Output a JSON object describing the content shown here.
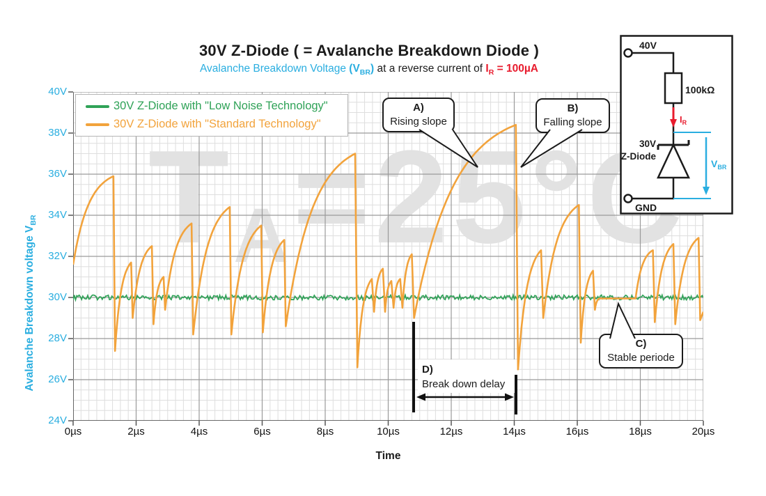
{
  "header": {
    "title": "30V Z-Diode ( = Avalanche Breakdown Diode )",
    "subtitle": {
      "highlight": "Avalanche Breakdown Voltage ",
      "vbr_open": "(V",
      "vbr_sub": "BR",
      "vbr_close": ")",
      "middle": " at a reverse current of  ",
      "current_i": "I",
      "current_sub": "R",
      "current_value": " = 100µA"
    }
  },
  "legend": {
    "items": [
      {
        "label": "30V Z-Diode with \"Low Noise Technology\"",
        "color": "#2fa257"
      },
      {
        "label": "30V Z-Diode with \"Standard Technology\"",
        "color": "#f2a33c"
      }
    ]
  },
  "axes": {
    "y_title_text": "Avalanche Breakdown voltage  ",
    "y_title_v": "V",
    "y_title_sub": "BR",
    "x_title": "Time",
    "y_ticks": [
      "40V",
      "38V",
      "36V",
      "34V",
      "32V",
      "30V",
      "28V",
      "26V",
      "24V"
    ],
    "x_ticks": [
      "0µs",
      "2µs",
      "4µs",
      "6µs",
      "8µs",
      "10µs",
      "12µs",
      "14µs",
      "16µs",
      "18µs",
      "20µs"
    ]
  },
  "annotations": {
    "a_tag": "A)",
    "a_text": "Rising slope",
    "b_tag": "B)",
    "b_text": "Falling slope",
    "c_tag": "C)",
    "c_text": "Stable periode",
    "d_tag": "D)",
    "d_text": "Break down delay"
  },
  "watermark": {
    "t": "T",
    "sub": "A",
    "rest": "=25°C"
  },
  "inset_circuit": {
    "supply": "40V",
    "resistor": "100kΩ",
    "current_i": "I",
    "current_sub": "R",
    "diode_line1": "30V",
    "diode_line2": "Z-Diode",
    "ground": "GND",
    "vbr": "V",
    "vbr_sub": "BR"
  },
  "colors": {
    "accent_cyan": "#2aaee0",
    "accent_red": "#e81c2e",
    "grid_minor": "#dedede",
    "grid_major": "#9a9a9a",
    "axis": "#555555",
    "annotation": "#1b1b1b",
    "watermark": "#e2e2e2"
  },
  "chart_data": {
    "type": "line",
    "title": "30V Z-Diode ( = Avalanche Breakdown Diode )",
    "xlabel": "Time",
    "ylabel": "Avalanche Breakdown voltage VBR",
    "x_unit": "µs",
    "y_unit": "V",
    "xlim": [
      0,
      20
    ],
    "ylim": [
      24,
      40
    ],
    "x_major_step": 2,
    "x_minor_step": 0.25,
    "y_major_step": 2,
    "y_minor_step": 0.5,
    "grid": true,
    "legend_position": "top-left",
    "series": [
      {
        "name": "30V Z-Diode with \"Low Noise Technology\"",
        "color": "#2fa257",
        "style": "flat-noise",
        "base": 30.0,
        "noise_amplitude": 0.12
      },
      {
        "name": "30V Z-Diode with \"Standard Technology\"",
        "color": "#f2a33c",
        "style": "sawtooth",
        "points": [
          [
            0.0,
            31.6
          ],
          [
            1.28,
            35.9
          ],
          [
            1.33,
            27.4
          ],
          [
            1.84,
            31.7
          ],
          [
            1.89,
            29.0
          ],
          [
            2.5,
            32.5
          ],
          [
            2.55,
            28.7
          ],
          [
            2.87,
            31.0
          ],
          [
            2.92,
            29.4
          ],
          [
            3.76,
            33.6
          ],
          [
            3.81,
            28.2
          ],
          [
            4.97,
            34.4
          ],
          [
            5.02,
            28.2
          ],
          [
            5.97,
            33.5
          ],
          [
            6.02,
            28.3
          ],
          [
            6.7,
            32.8
          ],
          [
            6.75,
            28.6
          ],
          [
            8.95,
            37.0
          ],
          [
            9.02,
            26.6
          ],
          [
            9.48,
            30.9
          ],
          [
            9.55,
            29.3
          ],
          [
            9.83,
            31.4
          ],
          [
            9.9,
            29.3
          ],
          [
            10.1,
            30.8
          ],
          [
            10.17,
            29.5
          ],
          [
            10.38,
            30.9
          ],
          [
            10.45,
            29.5
          ],
          [
            10.75,
            32.1
          ],
          [
            10.82,
            29.0
          ],
          [
            14.05,
            38.4
          ],
          [
            14.12,
            26.5
          ],
          [
            14.85,
            32.3
          ],
          [
            14.92,
            29.0
          ],
          [
            16.05,
            34.5
          ],
          [
            16.11,
            27.8
          ],
          [
            16.5,
            31.3
          ],
          [
            16.56,
            29.4
          ],
          [
            16.7,
            29.95
          ],
          [
            17.85,
            29.95
          ],
          [
            18.4,
            32.3
          ],
          [
            18.46,
            28.8
          ],
          [
            19.05,
            32.6
          ],
          [
            19.11,
            28.7
          ],
          [
            19.85,
            32.9
          ],
          [
            19.9,
            28.9
          ],
          [
            20.0,
            29.3
          ]
        ]
      }
    ]
  }
}
